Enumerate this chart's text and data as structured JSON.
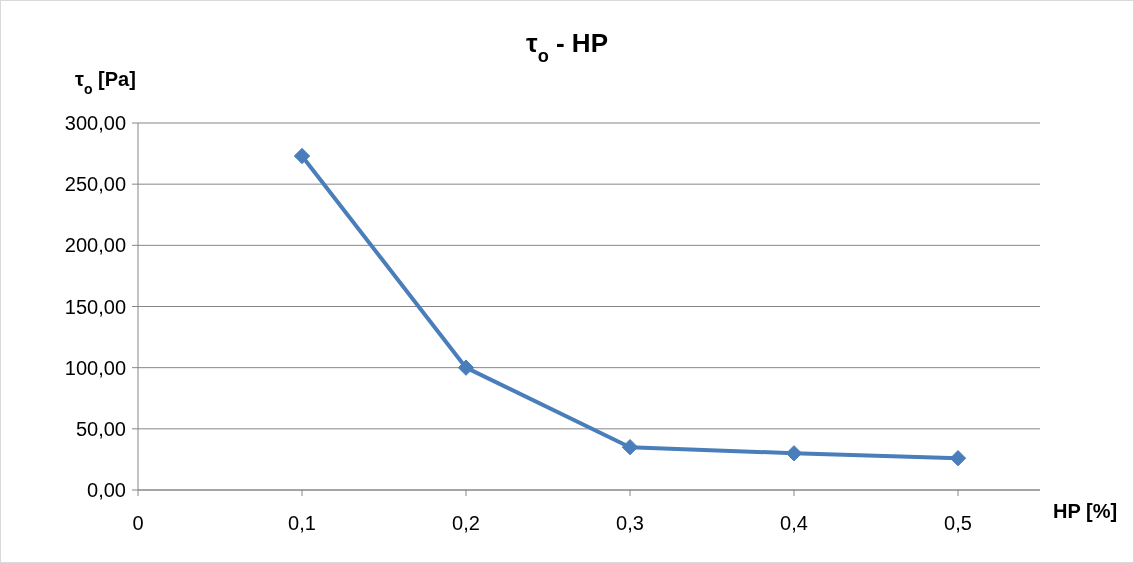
{
  "chart_data": {
    "type": "line",
    "title": "τ$_{o}$ - HP",
    "xlabel": "HP [%]",
    "ylabel": "τ$_{o}$ [Pa]",
    "x": [
      0.1,
      0.2,
      0.3,
      0.4,
      0.5
    ],
    "series": [
      {
        "color": "#4a7ebb",
        "values": [
          273,
          100,
          35,
          30,
          26
        ]
      }
    ],
    "xlim": [
      0,
      0.55
    ],
    "xticks": [
      0,
      {
        "value": 0.1,
        "label": "0,1"
      },
      {
        "value": 0.2,
        "label": "0,2"
      },
      {
        "value": 0.3,
        "label": "0,3"
      },
      {
        "value": 0.4,
        "label": "0,4"
      },
      {
        "value": 0.5,
        "label": "0,5"
      }
    ],
    "ylim": [
      0,
      300
    ],
    "yticks": [
      {
        "value": 0,
        "label": "0,00"
      },
      {
        "value": 50,
        "label": "50,00"
      },
      {
        "value": 100,
        "label": "100,00"
      },
      {
        "value": 150,
        "label": "150,00"
      },
      {
        "value": 200,
        "label": "200,00"
      },
      {
        "value": 250,
        "label": "250,00"
      },
      {
        "value": 300,
        "label": "300,00"
      }
    ],
    "grid": "y",
    "marker": "diamond",
    "line_style": "solid"
  }
}
